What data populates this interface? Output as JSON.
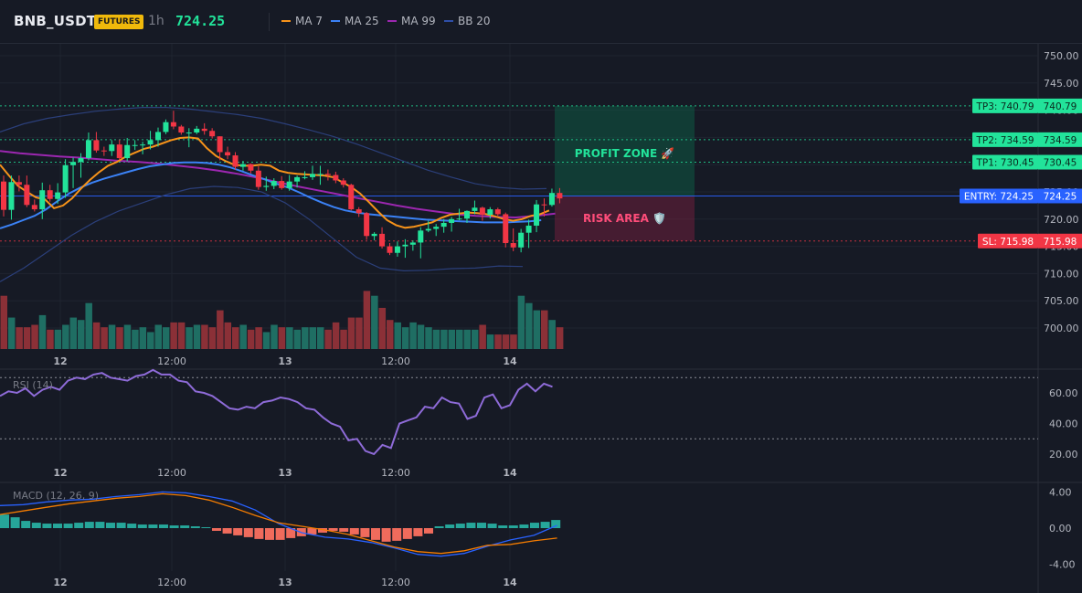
{
  "header": {
    "symbol": "BNB_USDT",
    "badge": "FUTURES",
    "timeframe": "1h",
    "price": "724.25"
  },
  "legend": [
    {
      "label": "MA 7",
      "color": "#f7931a"
    },
    {
      "label": "MA 25",
      "color": "#3b82f6"
    },
    {
      "label": "MA 99",
      "color": "#9c27b0"
    },
    {
      "label": "BB 20",
      "color": "#2f4fa8"
    }
  ],
  "colors": {
    "up": "#26a69a",
    "up_bright": "#22e39a",
    "down": "#ef5350",
    "tp": "#22e39a",
    "entry": "#2962ff",
    "sl": "#f23645",
    "rsi": "#8e6bd8",
    "macd": "#2962ff",
    "signal": "#f57c00"
  },
  "zones": {
    "profit_label": "PROFIT ZONE 🚀",
    "risk_label": "RISK AREA 🛡️"
  },
  "levels": [
    {
      "name": "TP3",
      "label": "TP3: 740.79",
      "value": 740.79,
      "kind": "tp"
    },
    {
      "name": "TP2",
      "label": "TP2: 734.59",
      "value": 734.59,
      "kind": "tp"
    },
    {
      "name": "TP1",
      "label": "TP1: 730.45",
      "value": 730.45,
      "kind": "tp"
    },
    {
      "name": "ENTRY",
      "label": "ENTRY: 724.25",
      "value": 724.25,
      "kind": "entry"
    },
    {
      "name": "SL",
      "label": "SL: 715.98",
      "value": 715.98,
      "kind": "sl"
    }
  ],
  "chart_data": [
    {
      "type": "candlestick",
      "title": "BNB_USDT 1h",
      "ylim": [
        697,
        752
      ],
      "yticks": [
        "750.00",
        "745.00",
        "740.00",
        "735.00",
        "730.00",
        "725.00",
        "720.00",
        "715.00",
        "710.00",
        "705.00",
        "700.00"
      ],
      "xticks": [
        "12",
        "12:00",
        "13",
        "12:00",
        "14"
      ],
      "ohlc": [
        [
          726.9,
          728.0,
          720.5,
          721.7
        ],
        [
          721.7,
          728.0,
          719.9,
          726.8
        ],
        [
          726.8,
          728.0,
          725.1,
          726.3
        ],
        [
          726.3,
          728.0,
          722.2,
          722.6
        ],
        [
          722.6,
          723.6,
          721.4,
          721.8
        ],
        [
          721.8,
          726.7,
          720.0,
          725.3
        ],
        [
          725.3,
          726.3,
          723.2,
          723.7
        ],
        [
          723.7,
          726.6,
          722.8,
          724.9
        ],
        [
          724.9,
          731.0,
          723.9,
          729.9
        ],
        [
          729.9,
          731.3,
          725.7,
          730.5
        ],
        [
          730.5,
          732.1,
          727.6,
          731.2
        ],
        [
          731.2,
          735.9,
          730.8,
          734.5
        ],
        [
          734.5,
          736.0,
          732.2,
          732.6
        ],
        [
          732.6,
          733.3,
          731.6,
          732.5
        ],
        [
          732.5,
          734.5,
          731.6,
          733.7
        ],
        [
          733.7,
          734.6,
          730.9,
          731.2
        ],
        [
          731.2,
          734.9,
          730.6,
          733.6
        ],
        [
          733.6,
          734.5,
          732.7,
          733.6
        ],
        [
          733.6,
          734.2,
          731.9,
          733.7
        ],
        [
          733.7,
          736.2,
          732.8,
          734.5
        ],
        [
          734.5,
          736.8,
          733.3,
          736.0
        ],
        [
          736.0,
          738.3,
          735.6,
          737.8
        ],
        [
          737.8,
          739.9,
          736.5,
          737.0
        ],
        [
          737.0,
          737.3,
          735.5,
          735.9
        ],
        [
          735.9,
          736.7,
          733.2,
          735.9
        ],
        [
          735.9,
          737.1,
          735.6,
          736.6
        ],
        [
          736.6,
          737.6,
          735.5,
          736.2
        ],
        [
          736.2,
          736.7,
          734.8,
          735.2
        ],
        [
          735.2,
          735.2,
          730.8,
          732.3
        ],
        [
          732.3,
          733.3,
          731.0,
          731.7
        ],
        [
          731.7,
          732.3,
          729.1,
          729.6
        ],
        [
          729.6,
          730.7,
          728.9,
          730.1
        ],
        [
          730.1,
          730.2,
          728.4,
          728.9
        ],
        [
          728.9,
          729.7,
          725.4,
          725.9
        ],
        [
          725.9,
          727.8,
          725.2,
          726.1
        ],
        [
          726.1,
          727.5,
          725.5,
          727.0
        ],
        [
          727.0,
          727.9,
          725.4,
          725.7
        ],
        [
          725.7,
          728.1,
          725.2,
          726.9
        ],
        [
          726.9,
          728.0,
          725.8,
          727.7
        ],
        [
          727.7,
          728.8,
          727.3,
          727.7
        ],
        [
          727.7,
          729.8,
          727.2,
          728.3
        ],
        [
          728.3,
          729.8,
          726.3,
          728.3
        ],
        [
          728.3,
          729.1,
          727.1,
          728.1
        ],
        [
          728.1,
          728.7,
          726.6,
          727.1
        ],
        [
          727.1,
          727.5,
          725.8,
          726.3
        ],
        [
          726.3,
          726.5,
          721.6,
          721.8
        ],
        [
          721.8,
          722.2,
          720.4,
          721.1
        ],
        [
          721.1,
          721.3,
          716.2,
          716.9
        ],
        [
          716.9,
          717.6,
          716.1,
          717.3
        ],
        [
          717.3,
          718.5,
          714.6,
          715.0
        ],
        [
          715.0,
          715.6,
          713.4,
          713.8
        ],
        [
          713.8,
          715.9,
          713.1,
          715.0
        ],
        [
          715.0,
          716.3,
          712.9,
          715.3
        ],
        [
          715.3,
          716.1,
          714.2,
          715.7
        ],
        [
          715.7,
          718.5,
          712.8,
          717.9
        ],
        [
          717.9,
          719.7,
          717.6,
          718.2
        ],
        [
          718.2,
          719.1,
          716.9,
          718.6
        ],
        [
          718.6,
          720.0,
          717.5,
          719.3
        ],
        [
          719.3,
          720.4,
          717.7,
          720.0
        ],
        [
          720.0,
          721.9,
          719.8,
          720.1
        ],
        [
          720.1,
          721.6,
          719.3,
          721.5
        ],
        [
          721.5,
          723.4,
          720.9,
          722.1
        ],
        [
          722.1,
          722.3,
          719.7,
          720.8
        ],
        [
          720.8,
          722.2,
          720.1,
          721.8
        ],
        [
          721.8,
          722.1,
          720.6,
          720.9
        ],
        [
          720.9,
          721.2,
          714.8,
          715.6
        ],
        [
          715.6,
          718.3,
          714.1,
          714.8
        ],
        [
          714.8,
          718.2,
          713.9,
          717.5
        ],
        [
          717.5,
          719.9,
          714.7,
          718.8
        ],
        [
          718.8,
          723.5,
          717.6,
          722.7
        ],
        [
          722.7,
          723.8,
          720.5,
          722.6
        ],
        [
          722.6,
          725.6,
          722.3,
          724.8
        ],
        [
          724.8,
          725.7,
          722.9,
          723.8
        ]
      ],
      "volume": [
        22,
        13,
        9,
        9,
        10,
        14,
        8,
        8,
        10,
        13,
        12,
        19,
        11,
        9,
        10,
        9,
        10,
        8,
        9,
        7,
        10,
        9,
        11,
        11,
        9,
        10,
        10,
        9,
        16,
        11,
        9,
        10,
        8,
        9,
        7,
        10,
        9,
        9,
        8,
        9,
        9,
        9,
        8,
        11,
        8,
        13,
        13,
        24,
        22,
        17,
        12,
        11,
        9,
        11,
        10,
        9,
        8,
        8,
        8,
        8,
        8,
        8,
        10,
        6,
        6,
        6,
        6,
        22,
        19,
        16,
        16,
        12,
        9
      ],
      "ma7": [
        730.0,
        728.0,
        726.1,
        725.0,
        724.0,
        723.6,
        722.0,
        722.5,
        723.8,
        725.6,
        727.2,
        728.6,
        729.8,
        730.5,
        731.5,
        732.2,
        732.9,
        733.3,
        733.9,
        734.5,
        734.9,
        735.0,
        734.8,
        733.0,
        731.6,
        730.7,
        730.0,
        729.8,
        729.8,
        730.0,
        729.8,
        728.9,
        728.5,
        728.3,
        728.2,
        728.1,
        728.0,
        727.7,
        726.8,
        725.9,
        724.7,
        723.1,
        721.4,
        719.8,
        718.9,
        718.4,
        718.6,
        719.0,
        719.4,
        720.2,
        720.8,
        721.0,
        721.2,
        721.1,
        720.9,
        720.5,
        720.0,
        719.7,
        720.0,
        720.6,
        720.9,
        721.6
      ],
      "ma25": [
        718.3,
        719.0,
        719.8,
        720.6,
        721.8,
        723.3,
        724.7,
        725.8,
        726.7,
        727.4,
        728.0,
        728.6,
        729.2,
        729.7,
        730.0,
        730.3,
        730.4,
        730.4,
        730.3,
        730.0,
        729.5,
        728.8,
        728.0,
        727.3,
        726.5,
        725.8,
        724.9,
        723.9,
        723.0,
        722.2,
        721.6,
        721.2,
        720.9,
        720.7,
        720.5,
        720.3,
        720.1,
        719.9,
        719.8,
        719.7,
        719.6,
        719.5,
        719.4,
        719.4,
        719.4,
        719.5,
        719.6,
        719.8
      ],
      "ma99": [
        732.5,
        732.1,
        731.8,
        731.5,
        731.3,
        731.0,
        730.7,
        730.5,
        730.2,
        729.8,
        729.4,
        728.9,
        728.3,
        727.6,
        726.8,
        726.0,
        725.3,
        724.6,
        723.9,
        723.2,
        722.5,
        721.9,
        721.4,
        720.9,
        720.6,
        720.4,
        720.3,
        720.6,
        721.0
      ],
      "bb_upper": [
        736.0,
        737.5,
        738.5,
        739.2,
        739.8,
        740.2,
        740.5,
        740.5,
        740.2,
        739.7,
        739.2,
        738.5,
        737.5,
        736.4,
        735.2,
        733.8,
        732.2,
        730.6,
        729.0,
        727.7,
        726.5,
        725.8,
        725.5,
        725.6
      ],
      "bb_lower": [
        708.5,
        711.0,
        714.0,
        717.0,
        719.5,
        721.5,
        723.0,
        724.5,
        725.6,
        726.0,
        725.8,
        725.0,
        723.0,
        720.0,
        716.5,
        713.0,
        711.0,
        710.5,
        710.6,
        710.9,
        711.0,
        711.4,
        711.3
      ],
      "price_ylabel": ""
    },
    {
      "type": "line",
      "title": "RSI (14)",
      "ylim": [
        15,
        70
      ],
      "yticks": [
        "60.00",
        "40.00",
        "20.00"
      ],
      "xticks": [
        "12",
        "12:00",
        "13",
        "12:00",
        "14"
      ],
      "values": [
        58,
        61,
        60,
        63,
        58,
        62,
        64,
        62,
        68,
        70,
        69,
        72,
        73,
        70,
        69,
        68,
        71,
        72,
        75,
        72,
        72,
        68,
        67,
        61,
        60,
        58,
        54,
        50,
        49,
        51,
        50,
        54,
        55,
        57,
        56,
        54,
        50,
        49,
        44,
        40,
        38,
        29,
        30,
        22,
        20,
        26,
        24,
        40,
        42,
        44,
        51,
        50,
        57,
        54,
        53,
        43,
        45,
        57,
        59,
        50,
        52,
        62,
        66,
        61,
        66,
        64
      ]
    },
    {
      "type": "line",
      "title": "MACD (12, 26, 9)",
      "ylim": [
        -4.6,
        4.6
      ],
      "yticks": [
        "4.00",
        "0.00",
        "-4.00"
      ],
      "xticks": [
        "12",
        "12:00",
        "13",
        "12:00",
        "14"
      ],
      "series": [
        {
          "name": "MACD",
          "values": [
            2.5,
            2.6,
            2.9,
            3.1,
            3.2,
            3.5,
            3.7,
            4.0,
            3.9,
            3.5,
            3.0,
            2.0,
            0.5,
            -0.5,
            -1.0,
            -1.2,
            -1.6,
            -2.2,
            -2.9,
            -3.1,
            -2.8,
            -2.0,
            -1.3,
            -0.8,
            0.3
          ]
        },
        {
          "name": "Signal",
          "values": [
            1.5,
            1.9,
            2.3,
            2.7,
            3.0,
            3.3,
            3.5,
            3.8,
            3.6,
            3.1,
            2.3,
            1.4,
            0.6,
            0.2,
            -0.2,
            -0.7,
            -1.4,
            -2.1,
            -2.6,
            -2.8,
            -2.5,
            -1.9,
            -1.8,
            -1.4,
            -1.1
          ]
        },
        {
          "name": "Histogram",
          "values": [
            1.5,
            1.2,
            0.8,
            0.6,
            0.5,
            0.5,
            0.5,
            0.6,
            0.7,
            0.7,
            0.6,
            0.6,
            0.5,
            0.4,
            0.4,
            0.4,
            0.3,
            0.3,
            0.2,
            0.1,
            -0.3,
            -0.6,
            -0.8,
            -1.0,
            -1.2,
            -1.3,
            -1.3,
            -1.1,
            -0.9,
            -0.7,
            -0.5,
            -0.3,
            -0.4,
            -0.7,
            -1.0,
            -1.3,
            -1.5,
            -1.4,
            -1.2,
            -0.9,
            -0.6,
            0.2,
            0.4,
            0.5,
            0.6,
            0.6,
            0.5,
            0.3,
            0.3,
            0.4,
            0.6,
            0.7,
            0.9
          ]
        }
      ]
    }
  ]
}
